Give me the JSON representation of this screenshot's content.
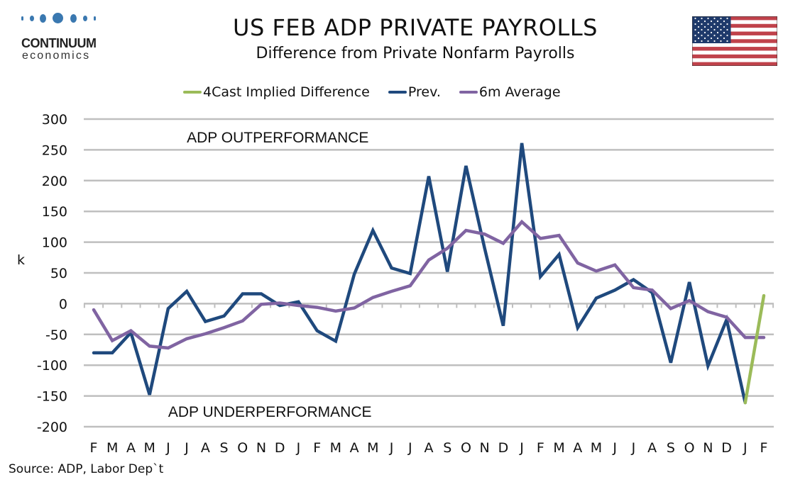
{
  "logo": {
    "name": "CONTINUUM",
    "sub": "economics",
    "color": "#3a78b0"
  },
  "header": {
    "title": "US FEB ADP PRIVATE PAYROLLS",
    "subtitle": "Difference from Private Nonfarm Payrolls"
  },
  "flag": {
    "icon": "us-flag-icon"
  },
  "source": "Source: ADP, Labor Dep`t",
  "chart_data": {
    "type": "line",
    "title": "US FEB ADP PRIVATE PAYROLLS",
    "subtitle": "Difference from Private Nonfarm Payrolls",
    "xlabel": "",
    "ylabel": "k",
    "ylim": [
      -200,
      300
    ],
    "yticks": [
      300,
      250,
      200,
      150,
      100,
      50,
      0,
      -50,
      -100,
      -150,
      -200
    ],
    "grid": true,
    "legend_position": "top",
    "x": [
      "F",
      "M",
      "A",
      "M",
      "J",
      "J",
      "A",
      "S",
      "O",
      "N",
      "D",
      "J",
      "F",
      "M",
      "A",
      "M",
      "J",
      "J",
      "A",
      "S",
      "O",
      "N",
      "D",
      "J",
      "F",
      "M",
      "A",
      "M",
      "J",
      "J",
      "A",
      "S",
      "O",
      "N",
      "D",
      "J",
      "F"
    ],
    "annotations": [
      {
        "text": "ADP OUTPERFORMANCE",
        "x_index": 5,
        "y": 270
      },
      {
        "text": "ADP UNDERPERFORMANCE",
        "x_index": 4,
        "y": -176
      }
    ],
    "series": [
      {
        "name": "4Cast Implied Difference",
        "color": "#9bbb59",
        "start_index": 35,
        "values": [
          -161,
          13
        ]
      },
      {
        "name": "Prev.",
        "color": "#1f497d",
        "start_index": 0,
        "values": [
          -80,
          -80,
          -47,
          -148,
          -8,
          20,
          -29,
          -20,
          16,
          16,
          -3,
          3,
          -44,
          -61,
          48,
          119,
          58,
          49,
          207,
          52,
          224,
          90,
          -36,
          261,
          44,
          80,
          -39,
          9,
          22,
          39,
          18,
          -96,
          35,
          -101,
          -26,
          -161
        ]
      },
      {
        "name": "6m Average",
        "color": "#8064a2",
        "start_index": 0,
        "values": [
          -10,
          -60,
          -44,
          -69,
          -72,
          -57,
          -49,
          -39,
          -28,
          -1,
          1,
          -3,
          -6,
          -12,
          -7,
          10,
          20,
          29,
          71,
          90,
          119,
          113,
          98,
          133,
          106,
          111,
          66,
          53,
          63,
          26,
          22,
          -8,
          5,
          -13,
          -22,
          -55,
          -55
        ]
      }
    ]
  }
}
